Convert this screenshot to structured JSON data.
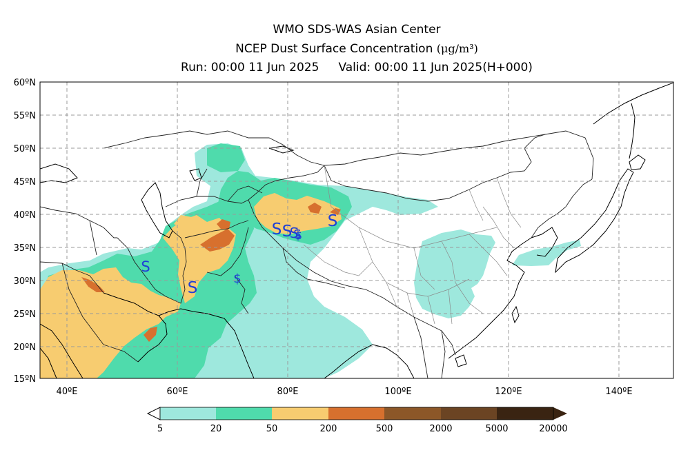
{
  "title": {
    "line1": "WMO SDS-WAS Asian Center",
    "line2": "NCEP Dust Surface Concentration",
    "line2_unit": "(μg/m³)",
    "run": "Run: 00:00 11 Jun 2025",
    "valid": "Valid: 00:00 11 Jun 2025(H+000)"
  },
  "lat_labels": [
    "60ºN",
    "55ºN",
    "50ºN",
    "45ºN",
    "40ºN",
    "35ºN",
    "30ºN",
    "25ºN",
    "20ºN",
    "15ºN"
  ],
  "lon_labels": [
    "40ºE",
    "60ºE",
    "80ºE",
    "100ºE",
    "120ºE",
    "140ºE"
  ],
  "colorbar": {
    "labels": [
      "5",
      "20",
      "50",
      "200",
      "500",
      "2000",
      "5000",
      "20000"
    ],
    "colors": [
      "#9ee8dd",
      "#4fdbac",
      "#f7cc70",
      "#d7702e",
      "#8c5728",
      "#6b4423",
      "#3a2412"
    ]
  },
  "colors": {
    "light": "#9ee8dd",
    "green": "#4fdbac",
    "yellow": "#f7cc70",
    "orange": "#d7702e",
    "brown": "#a35423",
    "storm": "#1f3fd6"
  },
  "storm_symbols": [
    "S",
    "S",
    "S",
    "S",
    "$",
    "S",
    "$",
    "$",
    "S"
  ]
}
